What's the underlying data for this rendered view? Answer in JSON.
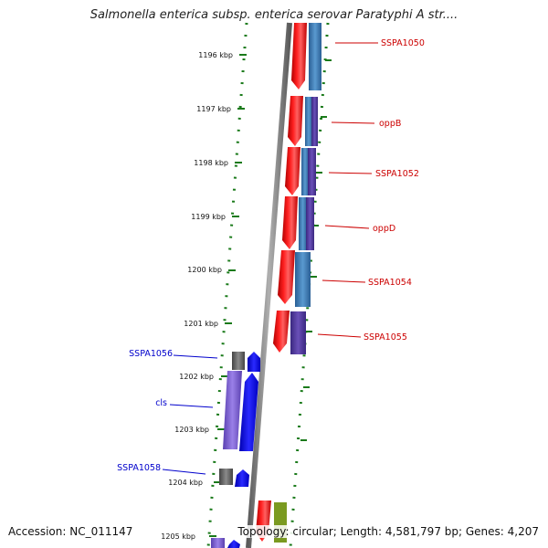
{
  "title": "Salmonella enterica subsp. enterica serovar Paratyphi A str....",
  "footer": {
    "accession": "Accession: NC_011147",
    "summary": "Topology: circular; Length: 4,581,797 bp; Genes: 4,207"
  },
  "colors": {
    "forward_gene": "#ff0000",
    "reverse_gene_a": "#3f7fbf",
    "reverse_gene_b": "#5a3fa0",
    "blue_gene": "#0000ff",
    "lavender_gene": "#8a70d8",
    "gray_gene": "#6a6a6a",
    "olive_gene": "#7a9a20",
    "backbone": "#808080",
    "tick": "#1a7a1a",
    "right_label": "#cc0000",
    "left_label": "#0000cc"
  },
  "scale": {
    "unit": "kbp",
    "labels": [
      "1196 kbp",
      "1197 kbp",
      "1198 kbp",
      "1199 kbp",
      "1200 kbp",
      "1201 kbp",
      "1202 kbp",
      "1203 kbp",
      "1204 kbp",
      "1205 kbp"
    ]
  },
  "right_gene_labels": [
    "SSPA1050",
    "oppB",
    "SSPA1052",
    "oppD",
    "SSPA1054",
    "SSPA1055"
  ],
  "left_gene_labels": [
    "SSPA1056",
    "cls",
    "SSPA1058"
  ]
}
